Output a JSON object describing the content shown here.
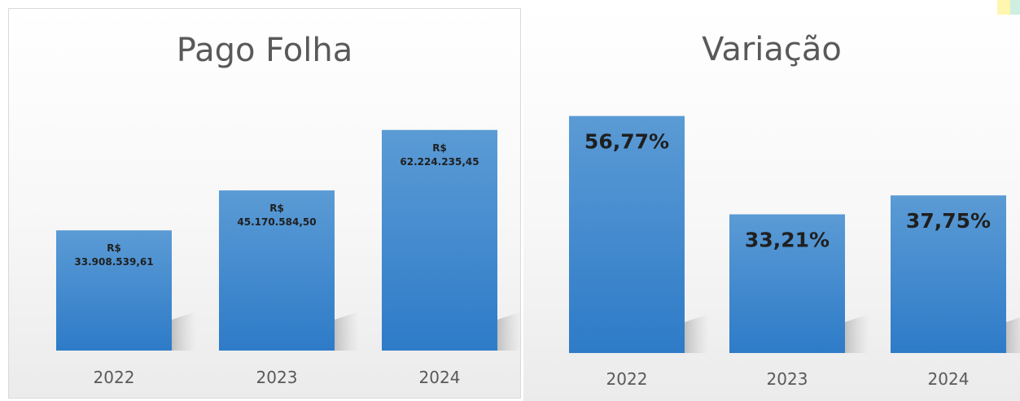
{
  "colors": {
    "bar_top": "#5b9bd5",
    "bar_bottom": "#2e7bc8",
    "label_dark": "#1f1f1f",
    "tick_label": "#595959"
  },
  "chart_data": [
    {
      "type": "bar",
      "title": "Pago Folha",
      "categories": [
        "2022",
        "2023",
        "2024"
      ],
      "values": [
        33908539.61,
        45170584.5,
        62224235.45
      ],
      "data_labels": [
        [
          "R$",
          "33.908.539,61"
        ],
        [
          "R$",
          "45.170.584,50"
        ],
        [
          "R$",
          "62.224.235,45"
        ]
      ],
      "ylim": [
        0,
        78000000
      ],
      "grid": false,
      "legend": "none"
    },
    {
      "type": "bar",
      "title": "Variação",
      "categories": [
        "2022",
        "2023",
        "2024"
      ],
      "values": [
        56.77,
        33.21,
        37.75
      ],
      "data_labels": [
        "56,77%",
        "33,21%",
        "37,75%"
      ],
      "ylim": [
        0,
        60
      ],
      "grid": false,
      "legend": "none"
    }
  ]
}
